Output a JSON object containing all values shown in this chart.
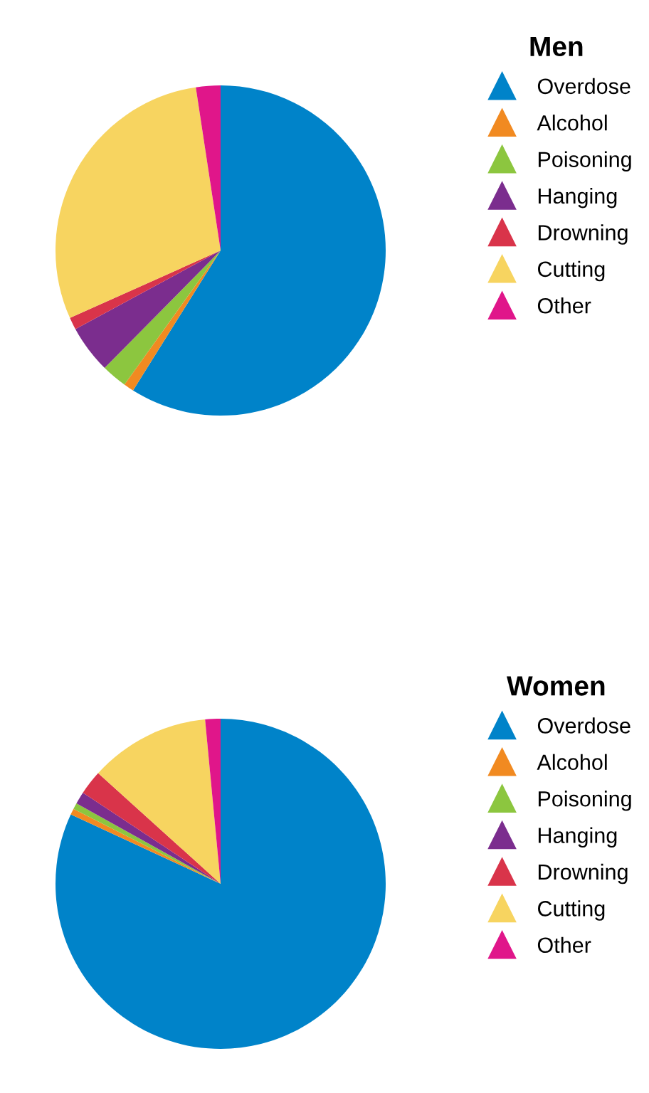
{
  "chart_data": [
    {
      "type": "pie",
      "legend_title": "Men",
      "legend": "right",
      "categories": [
        "Overdose",
        "Alcohol",
        "Poisoning",
        "Hanging",
        "Drowning",
        "Cutting",
        "Other"
      ],
      "values": [
        58.9,
        1,
        2.5,
        4.7,
        1.2,
        29.3,
        2.4
      ],
      "colors": [
        "#0083c9",
        "#f18a21",
        "#8cc63f",
        "#7b2d8e",
        "#d9344a",
        "#f7d460",
        "#e0168a"
      ]
    },
    {
      "type": "pie",
      "legend_title": "Women",
      "legend": "right",
      "categories": [
        "Overdose",
        "Alcohol",
        "Poisoning",
        "Hanging",
        "Drowning",
        "Cutting",
        "Other"
      ],
      "values": [
        81.9,
        0.6,
        0.6,
        1.2,
        2.4,
        11.8,
        1.5
      ],
      "colors": [
        "#0083c9",
        "#f18a21",
        "#8cc63f",
        "#7b2d8e",
        "#d9344a",
        "#f7d460",
        "#e0168a"
      ]
    }
  ]
}
